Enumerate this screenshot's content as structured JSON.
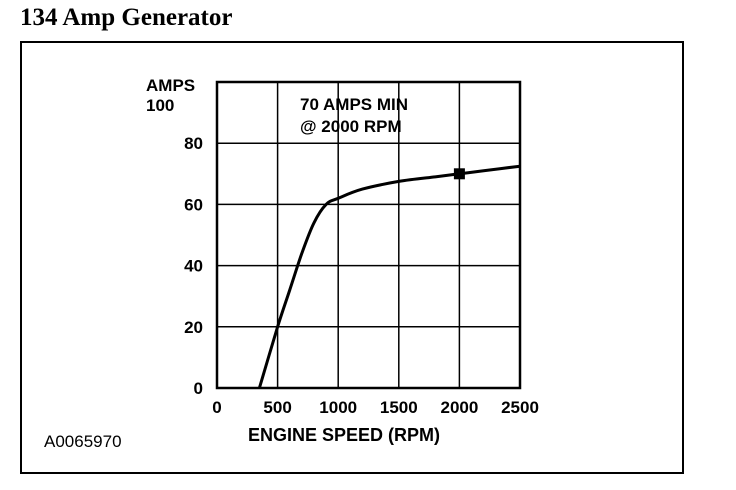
{
  "title": "134 Amp Generator",
  "figure_id": "A0065970",
  "chart_data": {
    "type": "line",
    "title": "",
    "ylabel_line1": "AMPS",
    "ylabel_line2": "100",
    "xlabel": "ENGINE SPEED (RPM)",
    "xlim": [
      0,
      2500
    ],
    "ylim": [
      0,
      100
    ],
    "x_ticks": [
      0,
      500,
      1000,
      1500,
      2000,
      2500
    ],
    "y_ticks": [
      0,
      20,
      40,
      60,
      80
    ],
    "grid": true,
    "annotation_line1": "70 AMPS MIN",
    "annotation_line2": "@ 2000 RPM",
    "marker": {
      "x": 2000,
      "y": 70
    },
    "series": [
      {
        "x": [
          350,
          500,
          600,
          700,
          800,
          900,
          1000,
          1200,
          1500,
          1800,
          2000,
          2200,
          2500
        ],
        "values": [
          0,
          20,
          32,
          44,
          54,
          60,
          62,
          65,
          67.5,
          69,
          70,
          71,
          72.5
        ]
      }
    ]
  }
}
